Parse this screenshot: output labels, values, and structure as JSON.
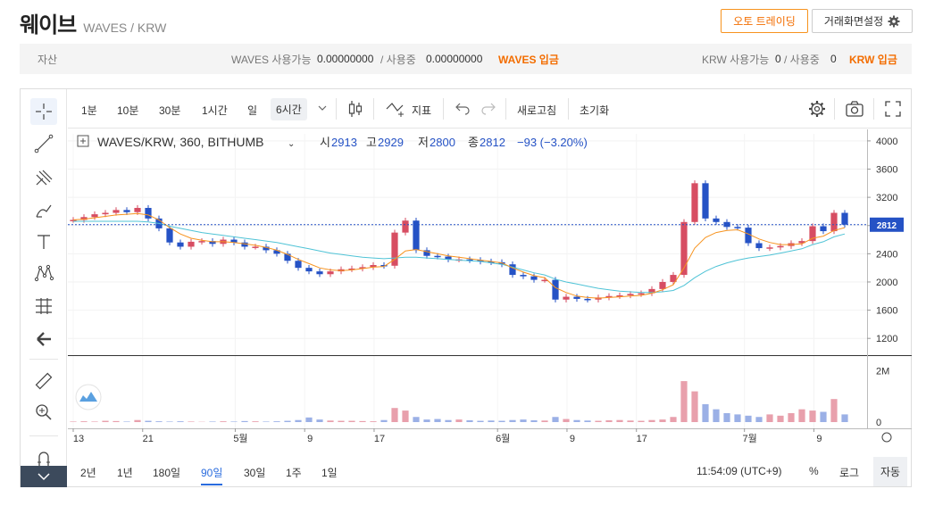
{
  "header": {
    "title": "웨이브",
    "subtitle": "WAVES / KRW"
  },
  "buttons": {
    "auto_trade": "오토 트레이딩",
    "screen_settings": "거래화면설정"
  },
  "assets": {
    "label": "자산",
    "waves_avail_label": "WAVES 사용가능",
    "waves_avail": "0.00000000",
    "waves_inuse_label": "/ 사용중",
    "waves_inuse": "0.00000000",
    "waves_deposit": "WAVES 입금",
    "krw_avail_label": "KRW 사용가능",
    "krw_avail": "0",
    "krw_inuse_label": "/ 사용중",
    "krw_inuse": "0",
    "krw_deposit": "KRW 입금"
  },
  "toolbar": {
    "intervals": [
      "1분",
      "10분",
      "30분",
      "1시간",
      "일",
      "6시간"
    ],
    "indicator": "지표",
    "refresh": "새로고침",
    "reset": "초기화"
  },
  "legend": {
    "symbol": "WAVES/KRW, 360, BITHUMB",
    "open_label": "시",
    "open": "2913",
    "high_label": "고",
    "high": "2929",
    "low_label": "저",
    "low": "2800",
    "close_label": "종",
    "close": "2812",
    "change": "−93 (−3.20%)"
  },
  "bottom": {
    "ranges": [
      "2년",
      "1년",
      "180일",
      "90일",
      "30일",
      "1주",
      "1일"
    ],
    "selected_range": "90일",
    "time": "11:54:09 (UTC+9)",
    "percent": "%",
    "log": "로그",
    "auto": "자동"
  },
  "colors": {
    "up": "#d74d62",
    "down": "#2552c5",
    "accent": "#f36d00",
    "ma_short": "#f7931e",
    "ma_long": "#4fc3d6"
  },
  "chart_data": {
    "type": "line",
    "ylim": [
      1000,
      4100
    ],
    "y_ticks": [
      "4000",
      "3600",
      "3200",
      "2800",
      "2400",
      "2000",
      "1600",
      "1200"
    ],
    "y_tick_values": [
      4000,
      3600,
      3200,
      2800,
      2400,
      2000,
      1600,
      1200
    ],
    "x_ticks": [
      "13",
      "21",
      "5월",
      "9",
      "17",
      "6월",
      "9",
      "17",
      "7월",
      "9"
    ],
    "last_price_label": "2812",
    "volume_ticks": [
      "2M",
      "0"
    ],
    "price": [
      2880,
      2920,
      2960,
      2980,
      3020,
      2990,
      3050,
      2900,
      2760,
      2560,
      2500,
      2570,
      2580,
      2540,
      2600,
      2560,
      2500,
      2500,
      2450,
      2400,
      2300,
      2200,
      2150,
      2110,
      2150,
      2180,
      2190,
      2210,
      2240,
      2230,
      2700,
      2870,
      2450,
      2370,
      2360,
      2320,
      2320,
      2310,
      2290,
      2280,
      2250,
      2100,
      2080,
      2030,
      2030,
      1750,
      1790,
      1760,
      1750,
      1780,
      1800,
      1810,
      1830,
      1840,
      1900,
      2000,
      2100,
      2850,
      3400,
      2900,
      2850,
      2780,
      2770,
      2550,
      2480,
      2490,
      2510,
      2550,
      2580,
      2790,
      2720,
      2980,
      2812
    ],
    "ma_short": [
      2880,
      2890,
      2910,
      2930,
      2950,
      2960,
      2970,
      2950,
      2880,
      2770,
      2680,
      2620,
      2590,
      2570,
      2570,
      2560,
      2540,
      2520,
      2490,
      2450,
      2390,
      2320,
      2260,
      2200,
      2170,
      2160,
      2170,
      2190,
      2210,
      2220,
      2320,
      2440,
      2460,
      2430,
      2400,
      2370,
      2350,
      2330,
      2310,
      2290,
      2270,
      2200,
      2140,
      2090,
      2060,
      1920,
      1850,
      1800,
      1780,
      1770,
      1780,
      1790,
      1800,
      1810,
      1840,
      1890,
      1960,
      2200,
      2480,
      2630,
      2700,
      2730,
      2740,
      2680,
      2610,
      2560,
      2530,
      2530,
      2540,
      2620,
      2650,
      2730,
      2770
    ],
    "ma_long": [
      2860,
      2860,
      2860,
      2860,
      2860,
      2860,
      2860,
      2850,
      2830,
      2790,
      2760,
      2730,
      2700,
      2680,
      2660,
      2640,
      2620,
      2600,
      2580,
      2560,
      2530,
      2500,
      2470,
      2440,
      2410,
      2390,
      2370,
      2350,
      2340,
      2330,
      2340,
      2350,
      2350,
      2340,
      2330,
      2320,
      2310,
      2300,
      2290,
      2270,
      2250,
      2210,
      2170,
      2130,
      2100,
      2040,
      2000,
      1970,
      1940,
      1910,
      1890,
      1870,
      1860,
      1850,
      1850,
      1860,
      1880,
      1950,
      2060,
      2150,
      2220,
      2270,
      2310,
      2340,
      2360,
      2380,
      2410,
      2440,
      2470,
      2530,
      2570,
      2640,
      2680
    ],
    "volume": [
      0.02,
      0.03,
      0.02,
      0.05,
      0.04,
      0.02,
      0.08,
      0.05,
      0.03,
      0.02,
      0.03,
      0.02,
      0.01,
      0.02,
      0.03,
      0.02,
      0.04,
      0.03,
      0.02,
      0.03,
      0.05,
      0.08,
      0.18,
      0.1,
      0.06,
      0.05,
      0.05,
      0.04,
      0.03,
      0.08,
      0.55,
      0.45,
      0.2,
      0.1,
      0.12,
      0.08,
      0.1,
      0.07,
      0.05,
      0.06,
      0.05,
      0.08,
      0.1,
      0.07,
      0.06,
      0.2,
      0.12,
      0.08,
      0.06,
      0.05,
      0.07,
      0.08,
      0.06,
      0.05,
      0.08,
      0.1,
      0.2,
      1.6,
      1.2,
      0.7,
      0.5,
      0.35,
      0.3,
      0.25,
      0.2,
      0.3,
      0.25,
      0.35,
      0.5,
      0.45,
      0.4,
      0.9,
      0.3
    ],
    "volume_ylim": [
      0,
      2.3
    ]
  }
}
